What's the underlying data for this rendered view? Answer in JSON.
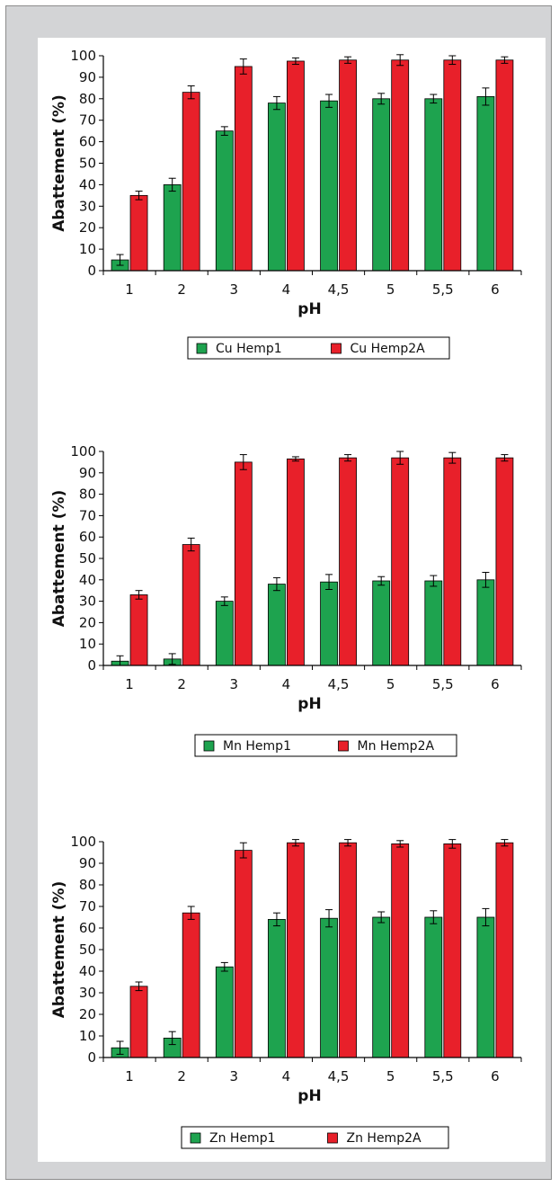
{
  "colors": {
    "series1": "#1ea34f",
    "series2": "#e8202a",
    "frame": "#d3d4d6"
  },
  "chart_data": [
    {
      "type": "bar",
      "categories": [
        "1",
        "2",
        "3",
        "4",
        "4,5",
        "5",
        "5,5",
        "6"
      ],
      "xlabel": "pH",
      "ylabel": "Abattement (%)",
      "ylim": [
        0,
        100
      ],
      "yticks": [
        0,
        10,
        20,
        30,
        40,
        50,
        60,
        70,
        80,
        90,
        100
      ],
      "legend_position": "bottom",
      "series": [
        {
          "name": "Cu Hemp1",
          "values": [
            5,
            40,
            65,
            78,
            79,
            80,
            80,
            81
          ],
          "errors": [
            2.5,
            3,
            2,
            3,
            3,
            2.5,
            2,
            4
          ]
        },
        {
          "name": "Cu Hemp2A",
          "values": [
            35,
            83,
            95,
            97.5,
            98,
            98,
            98,
            98
          ],
          "errors": [
            2,
            3,
            3.5,
            1.5,
            1.5,
            2.5,
            2,
            1.5
          ]
        }
      ]
    },
    {
      "type": "bar",
      "categories": [
        "1",
        "2",
        "3",
        "4",
        "4,5",
        "5",
        "5,5",
        "6"
      ],
      "xlabel": "pH",
      "ylabel": "Abattement (%)",
      "ylim": [
        0,
        100
      ],
      "yticks": [
        0,
        10,
        20,
        30,
        40,
        50,
        60,
        70,
        80,
        90,
        100
      ],
      "legend_position": "bottom",
      "series": [
        {
          "name": "Mn Hemp1",
          "values": [
            2,
            3,
            30,
            38,
            39,
            39.5,
            39.5,
            40
          ],
          "errors": [
            2.5,
            2.5,
            2,
            3,
            3.5,
            2,
            2.5,
            3.5
          ]
        },
        {
          "name": "Mn Hemp2A",
          "values": [
            33,
            56.5,
            95,
            96.5,
            97,
            97,
            97,
            97
          ],
          "errors": [
            2,
            3,
            3.5,
            1,
            1.5,
            3,
            2.5,
            1.5
          ]
        }
      ]
    },
    {
      "type": "bar",
      "categories": [
        "1",
        "2",
        "3",
        "4",
        "4,5",
        "5",
        "5,5",
        "6"
      ],
      "xlabel": "pH",
      "ylabel": "Abattement (%)",
      "ylim": [
        0,
        100
      ],
      "yticks": [
        0,
        10,
        20,
        30,
        40,
        50,
        60,
        70,
        80,
        90,
        100
      ],
      "legend_position": "bottom",
      "series": [
        {
          "name": "Zn Hemp1",
          "values": [
            4.5,
            9,
            42,
            64,
            64.5,
            65,
            65,
            65
          ],
          "errors": [
            3,
            3,
            2,
            3,
            4,
            2.5,
            3,
            4
          ]
        },
        {
          "name": "Zn Hemp2A",
          "values": [
            33,
            67,
            96,
            99.5,
            99.5,
            99,
            99,
            99.5
          ],
          "errors": [
            2,
            3,
            3.5,
            1.5,
            1.5,
            1.5,
            2,
            1.5
          ]
        }
      ]
    }
  ]
}
